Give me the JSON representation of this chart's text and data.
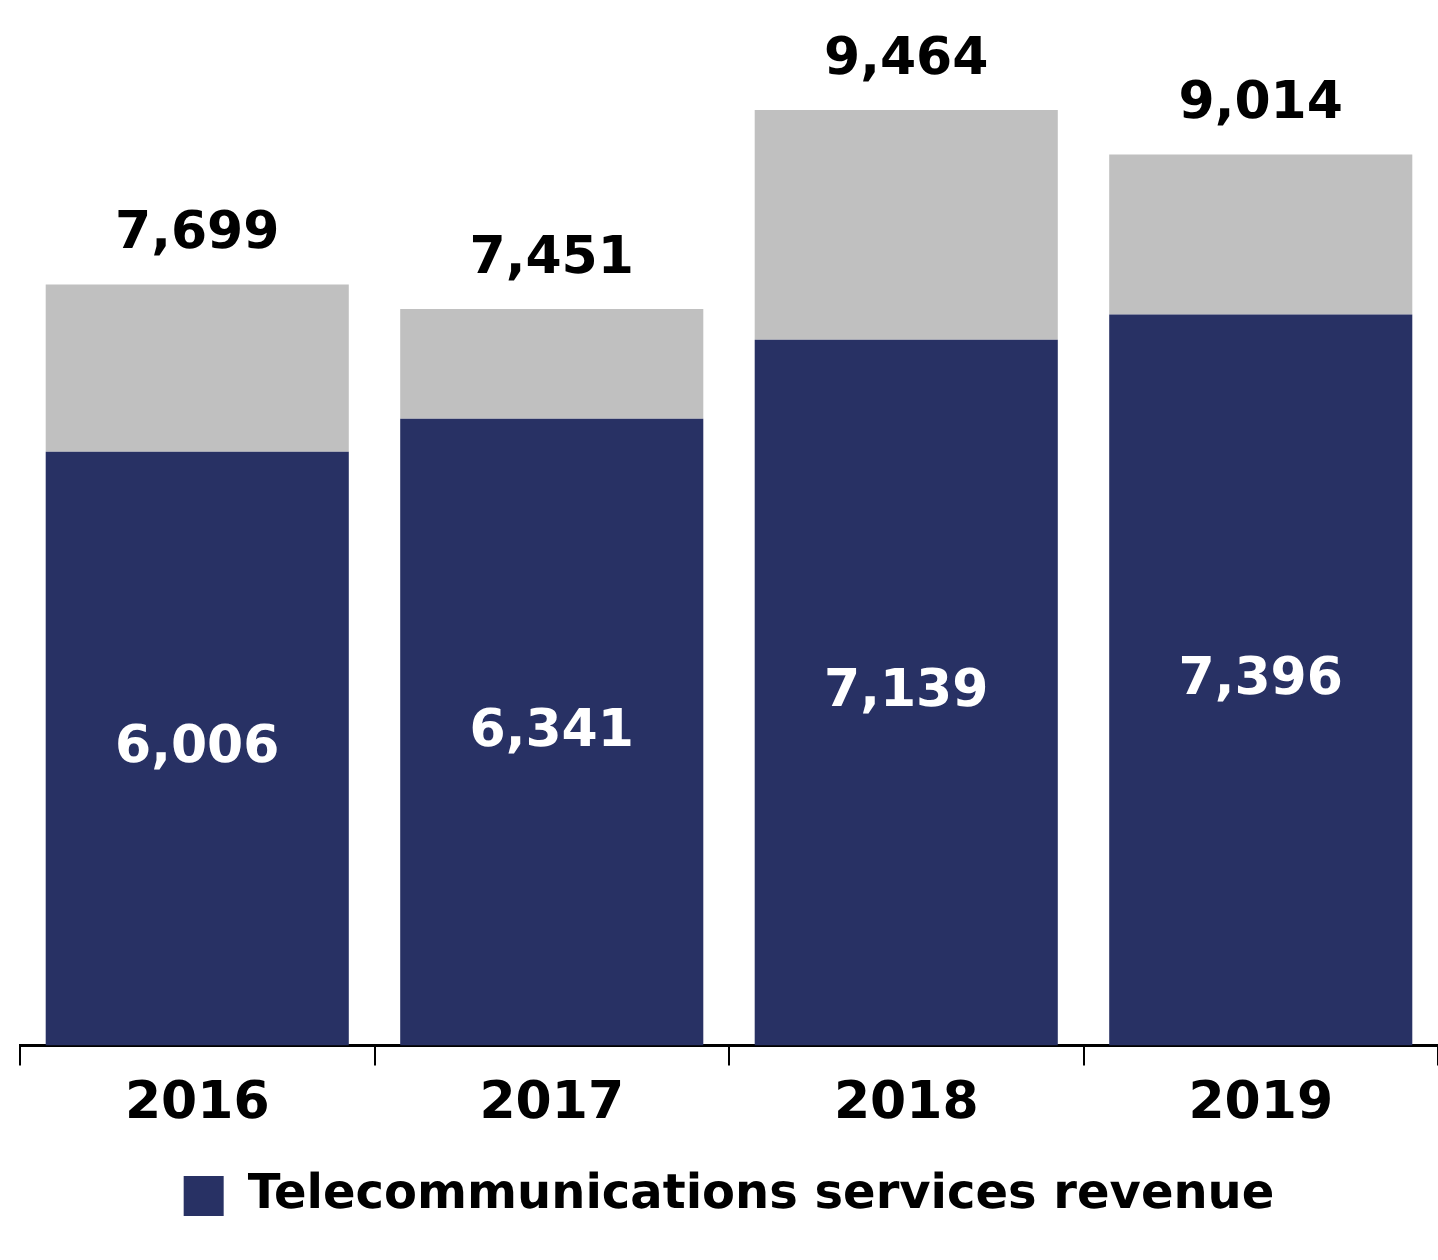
{
  "chart_data": {
    "type": "bar",
    "stacked": true,
    "categories": [
      "2016",
      "2017",
      "2018",
      "2019"
    ],
    "series": [
      {
        "name": "Telecommunications services revenue",
        "color": "#283164",
        "values": [
          6006,
          6341,
          7139,
          7396
        ],
        "value_labels": [
          "6,006",
          "6,341",
          "7,139",
          "7,396"
        ]
      },
      {
        "color": "#c0c0c0",
        "values": [
          1693,
          1110,
          2325,
          1618
        ]
      }
    ],
    "totals": [
      "7,699",
      "7,451",
      "9,464",
      "9,014"
    ],
    "legend": "bottom",
    "grid": false,
    "tick_labels": "x"
  }
}
